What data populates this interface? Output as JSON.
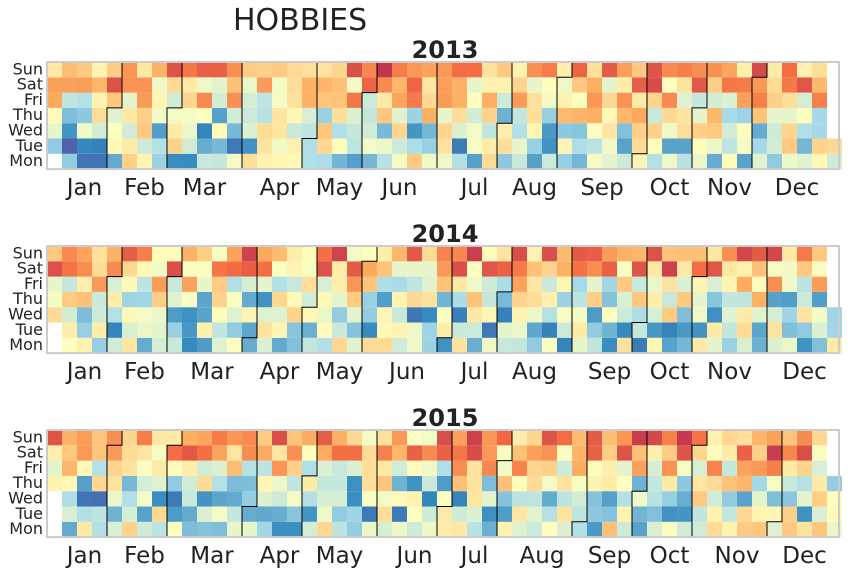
{
  "figure": {
    "title": "HOBBIES"
  },
  "colors": {
    "cold": "#5e4fa2",
    "cool": "#3288bd",
    "mid": "#ffffbf",
    "warm": "#f46d43",
    "hot": "#9e0142",
    "frame": "#cccccc",
    "month_border": "#000000"
  },
  "chart_data": [
    {
      "type": "heatmap",
      "title": "2013",
      "year": 2013,
      "weekday_labels": [
        "Sun",
        "Sat",
        "Fri",
        "Thu",
        "Wed",
        "Tue",
        "Mon"
      ],
      "month_labels": [
        "Jan",
        "Feb",
        "Mar",
        "Apr",
        "May",
        "Jun",
        "Jul",
        "Aug",
        "Sep",
        "Oct",
        "Nov",
        "Dec"
      ],
      "weekday_level": [
        0.86,
        0.78,
        0.6,
        0.42,
        0.32,
        0.3,
        0.34
      ],
      "month_level": [
        0.22,
        0.5,
        0.46,
        0.56,
        0.6,
        0.55,
        0.48,
        0.46,
        0.5,
        0.55,
        0.58,
        0.56
      ],
      "grid": false
    },
    {
      "type": "heatmap",
      "title": "2014",
      "year": 2014,
      "weekday_labels": [
        "Sun",
        "Sat",
        "Fri",
        "Thu",
        "Wed",
        "Tue",
        "Mon"
      ],
      "month_labels": [
        "Jan",
        "Feb",
        "Mar",
        "Apr",
        "May",
        "Jun",
        "Jul",
        "Aug",
        "Sep",
        "Oct",
        "Nov",
        "Dec"
      ],
      "weekday_level": [
        0.86,
        0.8,
        0.56,
        0.38,
        0.3,
        0.28,
        0.34
      ],
      "month_level": [
        0.5,
        0.52,
        0.48,
        0.48,
        0.45,
        0.44,
        0.46,
        0.44,
        0.42,
        0.58,
        0.56,
        0.54
      ],
      "grid": false
    },
    {
      "type": "heatmap",
      "title": "2015",
      "year": 2015,
      "weekday_labels": [
        "Sun",
        "Sat",
        "Fri",
        "Thu",
        "Wed",
        "Tue",
        "Mon"
      ],
      "month_labels": [
        "Jan",
        "Feb",
        "Mar",
        "Apr",
        "May",
        "Jun",
        "Jul",
        "Aug",
        "Sep",
        "Oct",
        "Nov",
        "Dec"
      ],
      "weekday_level": [
        0.84,
        0.8,
        0.6,
        0.38,
        0.3,
        0.28,
        0.34
      ],
      "month_level": [
        0.34,
        0.48,
        0.42,
        0.46,
        0.44,
        0.46,
        0.48,
        0.5,
        0.52,
        0.56,
        0.6,
        0.58
      ],
      "grid": false
    }
  ]
}
